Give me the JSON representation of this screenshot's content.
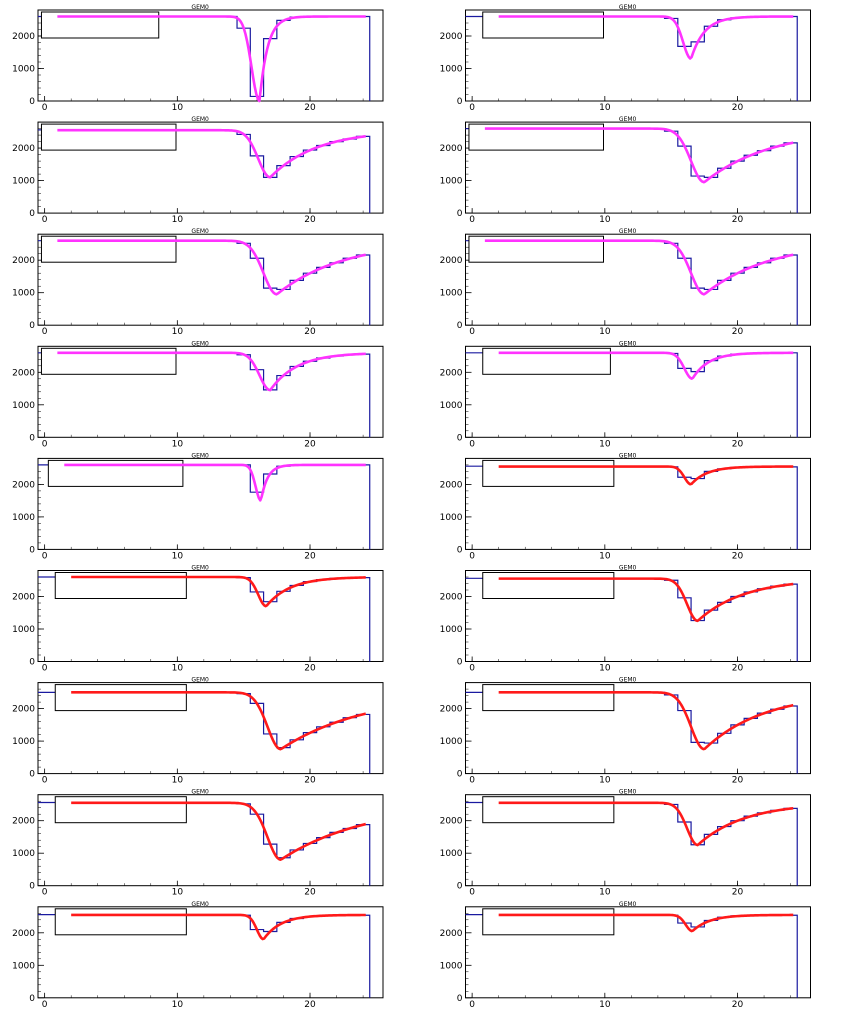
{
  "colors": {
    "histogram": "#1a1aa0",
    "fit_magenta": "#ff33ff",
    "fit_red": "#ff1a1a",
    "frame": "#000000"
  },
  "chart_data": [
    {
      "type": "line",
      "title": "GEM0",
      "fit_color": "magenta",
      "baseline": 2600,
      "peak_x": 16.2,
      "min_y": 0,
      "sigma_left": 0.6,
      "tau_right": 0.6,
      "xlim": [
        -0.5,
        25.5
      ],
      "ylim": [
        0,
        2800
      ],
      "yticks": [
        0,
        1000,
        2000
      ],
      "xticks": [
        0,
        10,
        20
      ],
      "stats_box": [
        0.01,
        0.35
      ]
    },
    {
      "type": "line",
      "title": "GEM0",
      "fit_color": "magenta",
      "baseline": 2600,
      "peak_x": 16.5,
      "min_y": 1300,
      "sigma_left": 0.6,
      "tau_right": 1.0,
      "xlim": [
        -0.5,
        25.5
      ],
      "ylim": [
        0,
        2800
      ],
      "yticks": [
        0,
        1000,
        2000
      ],
      "xticks": [
        0,
        10,
        20
      ],
      "stats_box": [
        0.05,
        0.4
      ]
    },
    {
      "type": "line",
      "title": "GEM0",
      "fit_color": "magenta",
      "baseline": 2550,
      "peak_x": 17.0,
      "min_y": 1100,
      "sigma_left": 0.9,
      "tau_right": 3.5,
      "xlim": [
        -0.5,
        25.5
      ],
      "ylim": [
        0,
        2800
      ],
      "yticks": [
        0,
        1000,
        2000
      ],
      "xticks": [
        0,
        10,
        20
      ],
      "stats_box": [
        0.01,
        0.4
      ]
    },
    {
      "type": "line",
      "title": "GEM0",
      "fit_color": "magenta",
      "baseline": 2600,
      "peak_x": 17.5,
      "min_y": 950,
      "sigma_left": 1.0,
      "tau_right": 5.0,
      "xlim": [
        -0.5,
        25.5
      ],
      "ylim": [
        0,
        2800
      ],
      "yticks": [
        0,
        1000,
        2000
      ],
      "xticks": [
        0,
        10,
        20
      ],
      "stats_box": [
        0.01,
        0.4
      ]
    },
    {
      "type": "line",
      "title": "GEM0",
      "fit_color": "magenta",
      "baseline": 2600,
      "peak_x": 17.5,
      "min_y": 950,
      "sigma_left": 1.0,
      "tau_right": 5.0,
      "xlim": [
        -0.5,
        25.5
      ],
      "ylim": [
        0,
        2800
      ],
      "yticks": [
        0,
        1000,
        2000
      ],
      "xticks": [
        0,
        10,
        20
      ],
      "stats_box": [
        0.01,
        0.4
      ]
    },
    {
      "type": "line",
      "title": "GEM0",
      "fit_color": "magenta",
      "baseline": 2600,
      "peak_x": 17.5,
      "min_y": 950,
      "sigma_left": 1.0,
      "tau_right": 5.0,
      "xlim": [
        -0.5,
        25.5
      ],
      "ylim": [
        0,
        2800
      ],
      "yticks": [
        0,
        1000,
        2000
      ],
      "xticks": [
        0,
        10,
        20
      ],
      "stats_box": [
        0.01,
        0.4
      ]
    },
    {
      "type": "line",
      "title": "GEM0",
      "fit_color": "magenta",
      "baseline": 2600,
      "peak_x": 17.0,
      "min_y": 1450,
      "sigma_left": 0.8,
      "tau_right": 2.0,
      "xlim": [
        -0.5,
        25.5
      ],
      "ylim": [
        0,
        2800
      ],
      "yticks": [
        0,
        1000,
        2000
      ],
      "xticks": [
        0,
        10,
        20
      ],
      "stats_box": [
        0.01,
        0.4
      ]
    },
    {
      "type": "line",
      "title": "GEM0",
      "fit_color": "magenta",
      "baseline": 2600,
      "peak_x": 16.6,
      "min_y": 1800,
      "sigma_left": 0.6,
      "tau_right": 1.2,
      "xlim": [
        -0.5,
        25.5
      ],
      "ylim": [
        0,
        2800
      ],
      "yticks": [
        0,
        1000,
        2000
      ],
      "xticks": [
        0,
        10,
        20
      ],
      "stats_box": [
        0.05,
        0.42
      ]
    },
    {
      "type": "line",
      "title": "GEM0",
      "fit_color": "magenta",
      "baseline": 2600,
      "peak_x": 16.3,
      "min_y": 1500,
      "sigma_left": 0.4,
      "tau_right": 0.5,
      "xlim": [
        -0.5,
        25.5
      ],
      "ylim": [
        0,
        2800
      ],
      "yticks": [
        0,
        1000,
        2000
      ],
      "xticks": [
        0,
        10,
        20
      ],
      "stats_box": [
        0.03,
        0.42
      ]
    },
    {
      "type": "line",
      "title": "GEM0",
      "fit_color": "red",
      "baseline": 2550,
      "peak_x": 16.5,
      "min_y": 2000,
      "sigma_left": 0.5,
      "tau_right": 1.2,
      "xlim": [
        -0.5,
        25.5
      ],
      "ylim": [
        0,
        2800
      ],
      "yticks": [
        0,
        1000,
        2000
      ],
      "xticks": [
        0,
        10,
        20
      ],
      "stats_box": [
        0.05,
        0.43
      ]
    },
    {
      "type": "line",
      "title": "GEM0",
      "fit_color": "red",
      "baseline": 2600,
      "peak_x": 16.7,
      "min_y": 1700,
      "sigma_left": 0.6,
      "tau_right": 1.8,
      "xlim": [
        -0.5,
        25.5
      ],
      "ylim": [
        0,
        2800
      ],
      "yticks": [
        0,
        1000,
        2000
      ],
      "xticks": [
        0,
        10,
        20
      ],
      "stats_box": [
        0.05,
        0.43
      ]
    },
    {
      "type": "line",
      "title": "GEM0",
      "fit_color": "red",
      "baseline": 2550,
      "peak_x": 17.0,
      "min_y": 1250,
      "sigma_left": 0.8,
      "tau_right": 3.5,
      "xlim": [
        -0.5,
        25.5
      ],
      "ylim": [
        0,
        2800
      ],
      "yticks": [
        0,
        1000,
        2000
      ],
      "xticks": [
        0,
        10,
        20
      ],
      "stats_box": [
        0.05,
        0.43
      ]
    },
    {
      "type": "line",
      "title": "GEM0",
      "fit_color": "red",
      "baseline": 2500,
      "peak_x": 17.8,
      "min_y": 750,
      "sigma_left": 1.0,
      "tau_right": 6.5,
      "xlim": [
        -0.5,
        25.5
      ],
      "ylim": [
        0,
        2800
      ],
      "yticks": [
        0,
        1000,
        2000
      ],
      "xticks": [
        0,
        10,
        20
      ],
      "stats_box": [
        0.05,
        0.43
      ]
    },
    {
      "type": "line",
      "title": "GEM0",
      "fit_color": "red",
      "baseline": 2500,
      "peak_x": 17.5,
      "min_y": 750,
      "sigma_left": 1.0,
      "tau_right": 4.5,
      "xlim": [
        -0.5,
        25.5
      ],
      "ylim": [
        0,
        2800
      ],
      "yticks": [
        0,
        1000,
        2000
      ],
      "xticks": [
        0,
        10,
        20
      ],
      "stats_box": [
        0.05,
        0.43
      ]
    },
    {
      "type": "line",
      "title": "GEM0",
      "fit_color": "red",
      "baseline": 2550,
      "peak_x": 17.8,
      "min_y": 800,
      "sigma_left": 1.0,
      "tau_right": 6.5,
      "xlim": [
        -0.5,
        25.5
      ],
      "ylim": [
        0,
        2800
      ],
      "yticks": [
        0,
        1000,
        2000
      ],
      "xticks": [
        0,
        10,
        20
      ],
      "stats_box": [
        0.05,
        0.43
      ]
    },
    {
      "type": "line",
      "title": "GEM0",
      "fit_color": "red",
      "baseline": 2550,
      "peak_x": 17.0,
      "min_y": 1250,
      "sigma_left": 0.8,
      "tau_right": 3.5,
      "xlim": [
        -0.5,
        25.5
      ],
      "ylim": [
        0,
        2800
      ],
      "yticks": [
        0,
        1000,
        2000
      ],
      "xticks": [
        0,
        10,
        20
      ],
      "stats_box": [
        0.05,
        0.43
      ]
    },
    {
      "type": "line",
      "title": "GEM0",
      "fit_color": "red",
      "baseline": 2550,
      "peak_x": 16.5,
      "min_y": 1800,
      "sigma_left": 0.5,
      "tau_right": 1.3,
      "xlim": [
        -0.5,
        25.5
      ],
      "ylim": [
        0,
        2800
      ],
      "yticks": [
        0,
        1000,
        2000
      ],
      "xticks": [
        0,
        10,
        20
      ],
      "stats_box": [
        0.05,
        0.43
      ]
    },
    {
      "type": "line",
      "title": "GEM0",
      "fit_color": "red",
      "baseline": 2550,
      "peak_x": 16.6,
      "min_y": 2050,
      "sigma_left": 0.5,
      "tau_right": 1.3,
      "xlim": [
        -0.5,
        25.5
      ],
      "ylim": [
        0,
        2800
      ],
      "yticks": [
        0,
        1000,
        2000
      ],
      "xticks": [
        0,
        10,
        20
      ],
      "stats_box": [
        0.05,
        0.43
      ]
    }
  ]
}
